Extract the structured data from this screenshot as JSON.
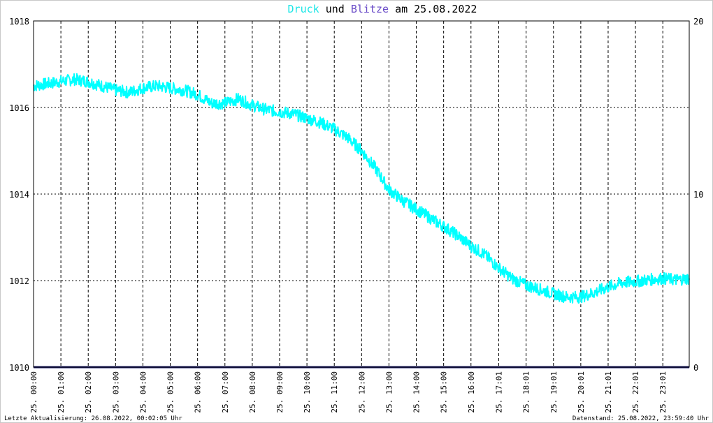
{
  "title": {
    "part1": "Druck",
    "part2": "und",
    "part3": "Blitze",
    "part4": "am 25.08.2022",
    "color_druck": "#19e6e6",
    "color_blitze": "#6a4cc8",
    "color_text": "#000000"
  },
  "footer": {
    "left": "Letzte Aktualisierung: 26.08.2022, 00:02:05 Uhr",
    "right": "Datenstand: 25.08.2022, 23:59:40 Uhr"
  },
  "chart_data": {
    "type": "line",
    "title": "Druck und Blitze am 25.08.2022",
    "xlabel": "",
    "ylabel": "",
    "grid": true,
    "y_left": {
      "min": 1010,
      "max": 1018,
      "ticks": [
        "1010",
        "1012",
        "1014",
        "1016",
        "1018"
      ]
    },
    "y_right": {
      "min": 0,
      "max": 20,
      "ticks": [
        "0",
        "10",
        "20"
      ]
    },
    "x_ticks": [
      "25. 00:00",
      "25. 01:00",
      "25. 02:00",
      "25. 03:00",
      "25. 04:00",
      "25. 05:00",
      "25. 06:00",
      "25. 07:00",
      "25. 08:00",
      "25. 09:00",
      "25. 10:00",
      "25. 11:00",
      "25. 12:00",
      "25. 13:00",
      "25. 14:00",
      "25. 15:00",
      "25. 16:00",
      "25. 17:01",
      "25. 18:01",
      "25. 19:01",
      "25. 20:01",
      "25. 21:01",
      "25. 22:01",
      "25. 23:01"
    ],
    "series": [
      {
        "name": "Druck",
        "axis": "left",
        "color": "#00ffff",
        "x": [
          "00:00",
          "00:30",
          "01:00",
          "01:30",
          "02:00",
          "02:30",
          "03:00",
          "03:30",
          "04:00",
          "04:30",
          "05:00",
          "05:30",
          "06:00",
          "06:30",
          "07:00",
          "07:30",
          "08:00",
          "08:30",
          "09:00",
          "09:30",
          "10:00",
          "10:30",
          "11:00",
          "11:30",
          "12:00",
          "12:30",
          "13:00",
          "13:30",
          "14:00",
          "14:30",
          "15:00",
          "15:30",
          "16:00",
          "16:30",
          "17:00",
          "17:30",
          "18:00",
          "18:30",
          "19:00",
          "19:30",
          "20:00",
          "20:30",
          "21:00",
          "21:30",
          "22:00",
          "22:30",
          "23:00",
          "23:30",
          "23:59"
        ],
        "values": [
          1016.5,
          1016.55,
          1016.6,
          1016.65,
          1016.6,
          1016.5,
          1016.4,
          1016.35,
          1016.45,
          1016.5,
          1016.45,
          1016.4,
          1016.3,
          1016.1,
          1016.1,
          1016.2,
          1016.05,
          1015.95,
          1015.9,
          1015.85,
          1015.75,
          1015.65,
          1015.5,
          1015.3,
          1015.0,
          1014.6,
          1014.1,
          1013.85,
          1013.65,
          1013.45,
          1013.25,
          1013.05,
          1012.8,
          1012.6,
          1012.3,
          1012.05,
          1011.9,
          1011.8,
          1011.7,
          1011.62,
          1011.62,
          1011.72,
          1011.85,
          1011.95,
          1011.98,
          1012.02,
          1012.05,
          1012.02,
          1012.05
        ]
      },
      {
        "name": "Blitze",
        "axis": "right",
        "color": "#1e1e6e",
        "x": [
          "00:00",
          "23:59"
        ],
        "values": [
          0,
          0
        ]
      }
    ]
  }
}
